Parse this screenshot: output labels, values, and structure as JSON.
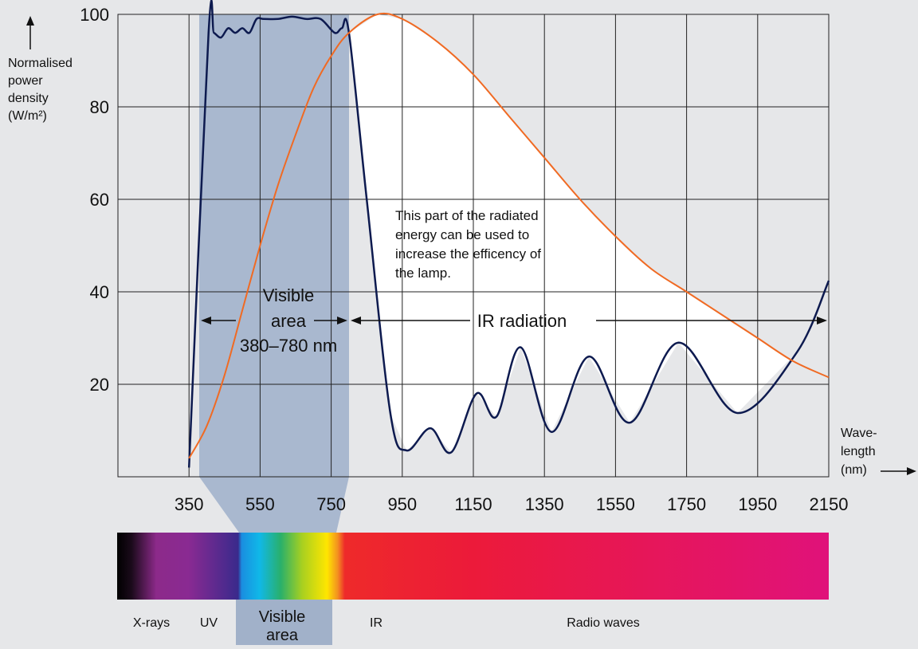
{
  "chart_data": {
    "type": "line",
    "y_label": [
      "Normalised",
      "power",
      "density",
      "(W/m²)"
    ],
    "x_label": [
      "Wave-",
      "length",
      "(nm)"
    ],
    "xlim": [
      150,
      2150
    ],
    "xticks": [
      350,
      550,
      750,
      950,
      1150,
      1350,
      1550,
      1750,
      1950,
      2150
    ],
    "ylim": [
      0,
      100
    ],
    "yticks": [
      20,
      40,
      60,
      80,
      100
    ],
    "grid": true,
    "series": [
      {
        "color": "#0d1a4f",
        "x": [
          350,
          405,
          420,
          440,
          460,
          480,
          500,
          520,
          540,
          560,
          600,
          640,
          680,
          720,
          760,
          780,
          800,
          850,
          917,
          962,
          1029,
          1088,
          1159,
          1215,
          1283,
          1370,
          1475,
          1590,
          1727,
          1893,
          2061,
          2150
        ],
        "values": [
          2,
          96,
          96,
          95,
          97,
          96,
          97,
          96,
          99,
          99,
          99,
          99.5,
          99,
          99,
          96,
          97,
          96,
          60,
          13.5,
          5.7,
          10.5,
          5.3,
          18,
          13,
          28,
          9.7,
          26,
          11.7,
          29,
          13.8,
          27,
          42.4
        ]
      },
      {
        "color": "#f06a23",
        "x": [
          350,
          400,
          450,
          500,
          550,
          600,
          650,
          700,
          750,
          800,
          880,
          950,
          1050,
          1150,
          1250,
          1350,
          1450,
          1550,
          1650,
          1750,
          1850,
          1950,
          2050,
          2150
        ],
        "values": [
          4,
          11,
          22,
          36,
          50,
          63,
          74,
          84,
          91,
          96,
          100,
          99,
          94,
          87,
          78,
          69,
          60,
          52,
          45,
          40,
          35,
          30,
          25,
          21.5
        ]
      }
    ],
    "annotations": {
      "visible": [
        "Visible",
        "area",
        "380–780 nm"
      ],
      "ir": "IR radiation",
      "note": [
        "This part of the radiated",
        "energy can be used to",
        "increase the efficency of",
        "the lamp."
      ]
    }
  },
  "spectrum": {
    "labels": [
      "X-rays",
      "UV",
      "Visible",
      "area",
      "IR",
      "Radio waves"
    ]
  }
}
